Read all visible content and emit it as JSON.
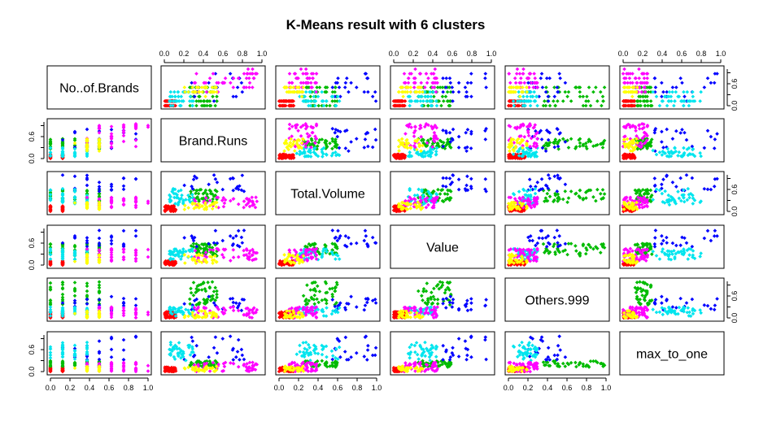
{
  "chart_data": {
    "type": "scatter",
    "title": "K-Means result with 6 clusters",
    "variables": [
      "No..of.Brands",
      "Brand.Runs",
      "Total.Volume",
      "Value",
      "Others.999",
      "max_to_one"
    ],
    "axis_range": [
      0,
      1
    ],
    "top_axis_ticks": [
      "0.0",
      "0.2",
      "0.4",
      "0.6",
      "0.8",
      "1.0"
    ],
    "bottom_axis_ticks": [
      "0.0",
      "0.2",
      "0.4",
      "0.6",
      "0.8",
      "1.0"
    ],
    "side_axis_ticks": [
      "0.0",
      "0.6"
    ],
    "cluster_colors": [
      "#ff0000",
      "#00bb00",
      "#0000ff",
      "#00e5ee",
      "#ff00ff",
      "#ffff00"
    ],
    "clusters": [
      {
        "id": 1,
        "color": "#ff0000",
        "values": {
          "No..of.Brands": [
            0.0,
            0.15
          ],
          "Brand.Runs": [
            0.0,
            0.12
          ],
          "Total.Volume": [
            0.0,
            0.15
          ],
          "Value": [
            0.0,
            0.12
          ],
          "Others.999": [
            0.0,
            0.18
          ],
          "max_to_one": [
            0.0,
            0.12
          ]
        }
      },
      {
        "id": 2,
        "color": "#00bb00",
        "values": {
          "No..of.Brands": [
            0.0,
            0.5
          ],
          "Brand.Runs": [
            0.25,
            0.55
          ],
          "Total.Volume": [
            0.25,
            0.6
          ],
          "Value": [
            0.25,
            0.6
          ],
          "Others.999": [
            0.35,
            1.0
          ],
          "max_to_one": [
            0.1,
            0.3
          ]
        }
      },
      {
        "id": 3,
        "color": "#0000ff",
        "values": {
          "No..of.Brands": [
            0.15,
            1.0
          ],
          "Brand.Runs": [
            0.2,
            0.9
          ],
          "Total.Volume": [
            0.5,
            1.0
          ],
          "Value": [
            0.5,
            1.0
          ],
          "Others.999": [
            0.2,
            0.6
          ],
          "max_to_one": [
            0.3,
            1.0
          ]
        }
      },
      {
        "id": 4,
        "color": "#00e5ee",
        "values": {
          "No..of.Brands": [
            0.0,
            0.4
          ],
          "Brand.Runs": [
            0.05,
            0.3
          ],
          "Total.Volume": [
            0.15,
            0.65
          ],
          "Value": [
            0.15,
            0.45
          ],
          "Others.999": [
            0.05,
            0.3
          ],
          "max_to_one": [
            0.3,
            0.8
          ]
        }
      },
      {
        "id": 5,
        "color": "#ff00ff",
        "values": {
          "No..of.Brands": [
            0.4,
            1.0
          ],
          "Brand.Runs": [
            0.3,
            0.95
          ],
          "Total.Volume": [
            0.1,
            0.4
          ],
          "Value": [
            0.1,
            0.45
          ],
          "Others.999": [
            0.0,
            0.3
          ],
          "max_to_one": [
            0.0,
            0.25
          ]
        }
      },
      {
        "id": 6,
        "color": "#ffff00",
        "values": {
          "No..of.Brands": [
            0.3,
            0.5
          ],
          "Brand.Runs": [
            0.2,
            0.55
          ],
          "Total.Volume": [
            0.05,
            0.25
          ],
          "Value": [
            0.05,
            0.3
          ],
          "Others.999": [
            0.0,
            0.2
          ],
          "max_to_one": [
            0.0,
            0.15
          ]
        }
      }
    ],
    "points_per_cluster": [
      60,
      45,
      22,
      40,
      45,
      30
    ]
  }
}
